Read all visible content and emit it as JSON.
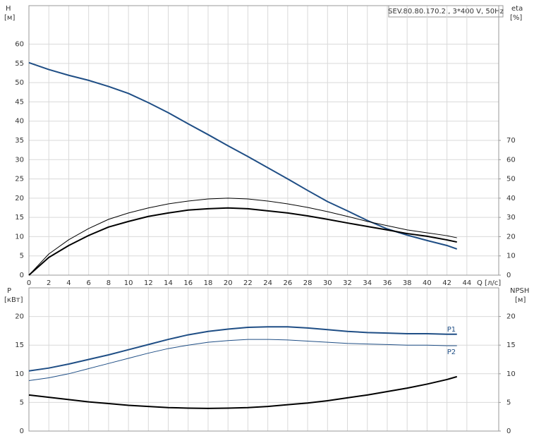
{
  "chart_data": [
    {
      "type": "line",
      "title": "SEV.80.80.170.2., 3*400 V, 50Hz",
      "ylabel": "H",
      "ylabel_unit": "[м]",
      "y2label": "eta",
      "y2label_unit": "[%]",
      "xlabel": "Q [л/с]",
      "x": [
        0,
        2,
        4,
        6,
        8,
        10,
        12,
        14,
        16,
        18,
        20,
        22,
        24,
        26,
        28,
        30,
        32,
        34,
        36,
        38,
        40,
        42,
        43
      ],
      "xlim": [
        0,
        47.2
      ],
      "xticks": [
        0,
        2,
        4,
        6,
        8,
        10,
        12,
        14,
        16,
        18,
        20,
        22,
        24,
        26,
        28,
        30,
        32,
        34,
        36,
        38,
        40,
        42,
        44
      ],
      "ylim": [
        0,
        70
      ],
      "yticks": [
        0,
        5,
        10,
        15,
        20,
        25,
        30,
        35,
        40,
        45,
        50,
        55,
        60
      ],
      "y2lim": [
        0,
        140
      ],
      "y2ticks": [
        0,
        10,
        20,
        30,
        40,
        50,
        60,
        70
      ],
      "grid": true,
      "series": [
        {
          "color": "#1f4e85",
          "values": [
            55.2,
            53.4,
            51.9,
            50.6,
            49.0,
            47.2,
            44.8,
            42.2,
            39.3,
            36.5,
            33.6,
            30.8,
            27.9,
            25.0,
            22.0,
            19.1,
            16.7,
            14.2,
            12.0,
            10.4,
            9.0,
            7.7,
            6.8
          ]
        },
        {
          "color": "#000000",
          "axis": "y2",
          "values": [
            0,
            11.0,
            18.4,
            24.2,
            29.0,
            32.3,
            34.9,
            37.0,
            38.5,
            39.6,
            40.0,
            39.6,
            38.5,
            37.0,
            35.2,
            33.0,
            30.5,
            27.9,
            25.7,
            23.5,
            22.0,
            20.5,
            19.4
          ]
        },
        {
          "color": "#000000",
          "axis": "y2",
          "values": [
            0,
            9.2,
            15.4,
            20.6,
            25.0,
            27.9,
            30.5,
            32.3,
            33.8,
            34.5,
            34.9,
            34.5,
            33.4,
            32.3,
            30.8,
            29.0,
            27.1,
            25.3,
            23.5,
            21.6,
            20.2,
            18.3,
            17.2
          ]
        }
      ]
    },
    {
      "type": "line",
      "ylabel": "P",
      "ylabel_unit": "[кВт]",
      "y2label": "NPSH",
      "y2label_unit": "[м]",
      "x": [
        0,
        2,
        4,
        6,
        8,
        10,
        12,
        14,
        16,
        18,
        20,
        22,
        24,
        26,
        28,
        30,
        32,
        34,
        36,
        38,
        40,
        42,
        43
      ],
      "xlim": [
        0,
        47.2
      ],
      "ylim": [
        0,
        25
      ],
      "yticks": [
        0,
        5,
        10,
        15,
        20
      ],
      "y2lim": [
        0,
        25
      ],
      "y2ticks": [
        0,
        5,
        10,
        15,
        20
      ],
      "grid": true,
      "series": [
        {
          "name": "P1",
          "color": "#1f4e85",
          "values": [
            10.5,
            11.0,
            11.7,
            12.5,
            13.3,
            14.2,
            15.1,
            16.0,
            16.8,
            17.4,
            17.8,
            18.1,
            18.2,
            18.2,
            18.0,
            17.7,
            17.4,
            17.2,
            17.1,
            17.0,
            17.0,
            16.9,
            16.9
          ]
        },
        {
          "name": "P2",
          "color": "#1f4e85",
          "values": [
            8.8,
            9.3,
            10.0,
            10.9,
            11.8,
            12.7,
            13.6,
            14.4,
            15.0,
            15.5,
            15.8,
            16.0,
            16.0,
            15.9,
            15.7,
            15.5,
            15.3,
            15.2,
            15.1,
            15.0,
            15.0,
            14.9,
            14.9
          ]
        },
        {
          "color": "#000000",
          "axis": "y2",
          "values": [
            6.3,
            5.9,
            5.5,
            5.1,
            4.8,
            4.5,
            4.3,
            4.1,
            4.0,
            3.95,
            4.0,
            4.1,
            4.3,
            4.6,
            4.9,
            5.3,
            5.8,
            6.3,
            6.9,
            7.5,
            8.2,
            9.0,
            9.5
          ]
        }
      ]
    }
  ]
}
